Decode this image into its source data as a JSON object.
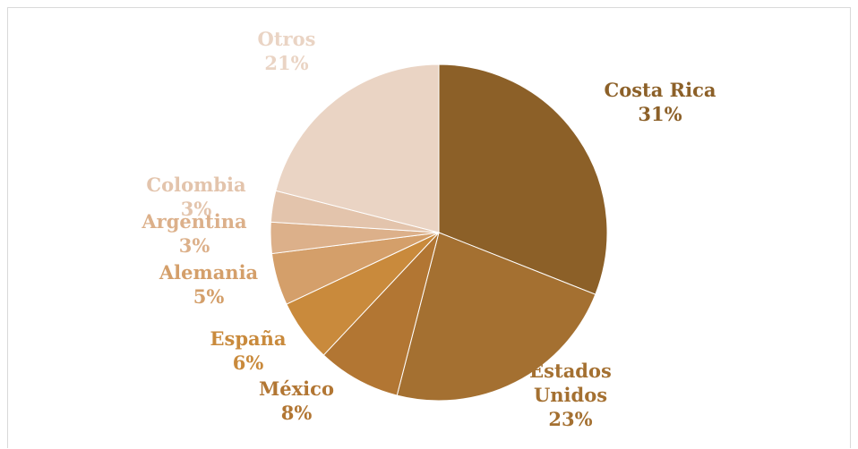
{
  "chart_data": {
    "type": "pie",
    "title": "",
    "start_angle_deg": 0,
    "direction": "clockwise",
    "slices": [
      {
        "label": "Costa Rica",
        "label_lines": [
          "Costa Rica"
        ],
        "percent_label": "31%",
        "value": 31,
        "color": "#8c6028"
      },
      {
        "label": "Estados Unidos",
        "label_lines": [
          "Estados",
          "Unidos"
        ],
        "percent_label": "23%",
        "value": 23,
        "color": "#a47031"
      },
      {
        "label": "México",
        "label_lines": [
          "México"
        ],
        "percent_label": "8%",
        "value": 8,
        "color": "#b27633"
      },
      {
        "label": "España",
        "label_lines": [
          "España"
        ],
        "percent_label": "6%",
        "value": 6,
        "color": "#c98a3c"
      },
      {
        "label": "Alemania",
        "label_lines": [
          "Alemania"
        ],
        "percent_label": "5%",
        "value": 5,
        "color": "#d49f6a"
      },
      {
        "label": "Argentina",
        "label_lines": [
          "Argentina"
        ],
        "percent_label": "3%",
        "value": 3,
        "color": "#dcb08a"
      },
      {
        "label": "Colombia",
        "label_lines": [
          "Colombia"
        ],
        "percent_label": "3%",
        "value": 3,
        "color": "#e3c4ac"
      },
      {
        "label": "Otros",
        "label_lines": [
          "Otros"
        ],
        "percent_label": "21%",
        "value": 21,
        "color": "#ead4c4"
      }
    ]
  }
}
